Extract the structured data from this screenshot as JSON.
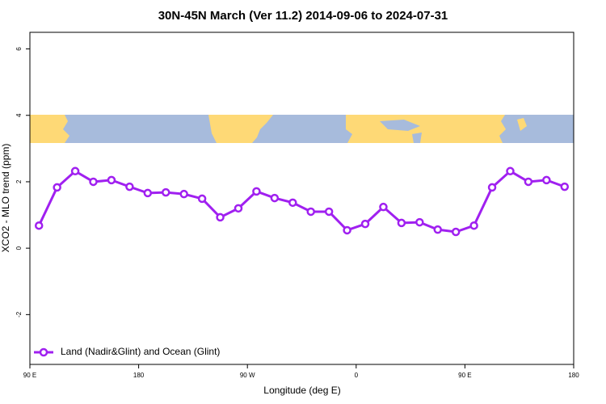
{
  "chart_data": {
    "type": "line",
    "title": "30N-45N March (Ver 11.2)   2014-09-06 to 2024-07-31",
    "xlabel": "Longitude (deg E)",
    "ylabel": "XCO2 - MLO trend (ppm)",
    "x": [
      97.5,
      112.5,
      127.5,
      142.5,
      157.5,
      172.5,
      187.5,
      202.5,
      217.5,
      232.5,
      247.5,
      262.5,
      277.5,
      292.5,
      307.5,
      322.5,
      337.5,
      352.5,
      367.5,
      382.5,
      397.5,
      412.5,
      427.5,
      442.5,
      457.5,
      472.5,
      487.5,
      502.5,
      517.5,
      532.5
    ],
    "series": [
      {
        "name": "Land (Nadir&Glint) and Ocean (Glint)",
        "color": "#a020f0",
        "values": [
          0.68,
          1.83,
          2.32,
          2.0,
          2.05,
          1.85,
          1.66,
          1.68,
          1.63,
          1.49,
          0.93,
          1.2,
          1.71,
          1.51,
          1.37,
          1.1,
          1.1,
          0.54,
          0.73,
          1.24,
          0.76,
          0.78,
          0.56,
          0.49,
          0.68,
          1.83,
          2.32,
          2.0,
          2.05,
          1.85
        ]
      }
    ],
    "xlim": [
      90,
      540
    ],
    "xticks": [
      {
        "value": 90,
        "label": "90 E"
      },
      {
        "value": 180,
        "label": "180"
      },
      {
        "value": 270,
        "label": "90 W"
      },
      {
        "value": 360,
        "label": "0"
      },
      {
        "value": 450,
        "label": "90 E"
      },
      {
        "value": 540,
        "label": "180"
      }
    ],
    "ylim": [
      -3.5,
      6.5
    ],
    "yticks": [
      -2,
      0,
      2,
      4,
      6
    ],
    "legend": "bottom-left"
  }
}
